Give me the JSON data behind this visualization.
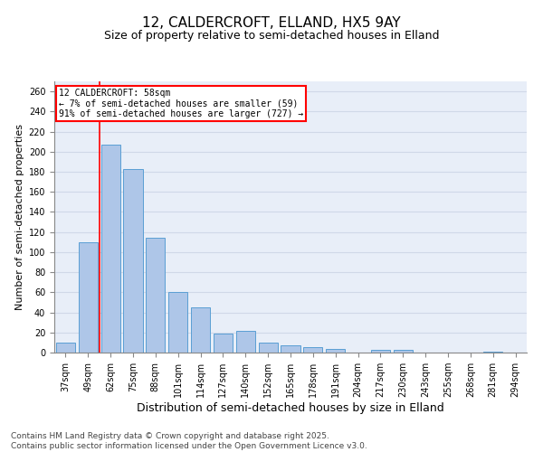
{
  "title": "12, CALDERCROFT, ELLAND, HX5 9AY",
  "subtitle": "Size of property relative to semi-detached houses in Elland",
  "xlabel": "Distribution of semi-detached houses by size in Elland",
  "ylabel": "Number of semi-detached properties",
  "categories": [
    "37sqm",
    "49sqm",
    "62sqm",
    "75sqm",
    "88sqm",
    "101sqm",
    "114sqm",
    "127sqm",
    "140sqm",
    "152sqm",
    "165sqm",
    "178sqm",
    "191sqm",
    "204sqm",
    "217sqm",
    "230sqm",
    "243sqm",
    "255sqm",
    "268sqm",
    "281sqm",
    "294sqm"
  ],
  "values": [
    10,
    110,
    207,
    183,
    114,
    60,
    45,
    19,
    22,
    10,
    7,
    5,
    4,
    0,
    3,
    3,
    0,
    0,
    0,
    1,
    0
  ],
  "bar_color": "#aec6e8",
  "bar_edge_color": "#5a9fd4",
  "annotation_text": "12 CALDERCROFT: 58sqm\n← 7% of semi-detached houses are smaller (59)\n91% of semi-detached houses are larger (727) →",
  "annotation_box_color": "white",
  "annotation_box_edge_color": "red",
  "vline_color": "red",
  "vline_x_index": 1,
  "ylim": [
    0,
    270
  ],
  "yticks": [
    0,
    20,
    40,
    60,
    80,
    100,
    120,
    140,
    160,
    180,
    200,
    220,
    240,
    260
  ],
  "grid_color": "#d0d8e8",
  "background_color": "#e8eef8",
  "footer": "Contains HM Land Registry data © Crown copyright and database right 2025.\nContains public sector information licensed under the Open Government Licence v3.0.",
  "title_fontsize": 11,
  "subtitle_fontsize": 9,
  "xlabel_fontsize": 9,
  "ylabel_fontsize": 8,
  "tick_fontsize": 7,
  "footer_fontsize": 6.5
}
